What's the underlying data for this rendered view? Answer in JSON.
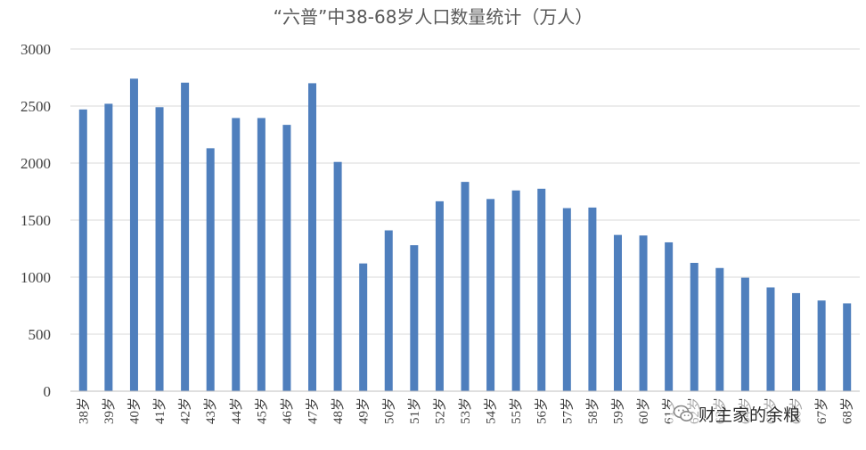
{
  "chart_data": {
    "type": "bar",
    "title": "“六普”中38-68岁人口数量统计（万人）",
    "xlabel": "",
    "ylabel": "",
    "ylim": [
      0,
      3000
    ],
    "yticks": [
      0,
      500,
      1000,
      1500,
      2000,
      2500,
      3000
    ],
    "grid": true,
    "legend": "none",
    "bar_color": "#4f7fbd",
    "categories": [
      "38岁",
      "39岁",
      "40岁",
      "41岁",
      "42岁",
      "43岁",
      "44岁",
      "45岁",
      "46岁",
      "47岁",
      "48岁",
      "49岁",
      "50岁",
      "51岁",
      "52岁",
      "53岁",
      "54岁",
      "55岁",
      "56岁",
      "57岁",
      "58岁",
      "59岁",
      "60岁",
      "61岁",
      "62岁",
      "63岁",
      "64岁",
      "65岁",
      "66岁",
      "67岁",
      "68岁"
    ],
    "values": [
      2470,
      2520,
      2740,
      2490,
      2705,
      2130,
      2395,
      2395,
      2335,
      2700,
      2010,
      1120,
      1410,
      1280,
      1665,
      1835,
      1685,
      1760,
      1775,
      1605,
      1610,
      1370,
      1365,
      1305,
      1125,
      1080,
      995,
      910,
      860,
      795,
      770
    ]
  },
  "watermark": {
    "icon": "wechat-icon",
    "text": "财主家的余粮"
  }
}
